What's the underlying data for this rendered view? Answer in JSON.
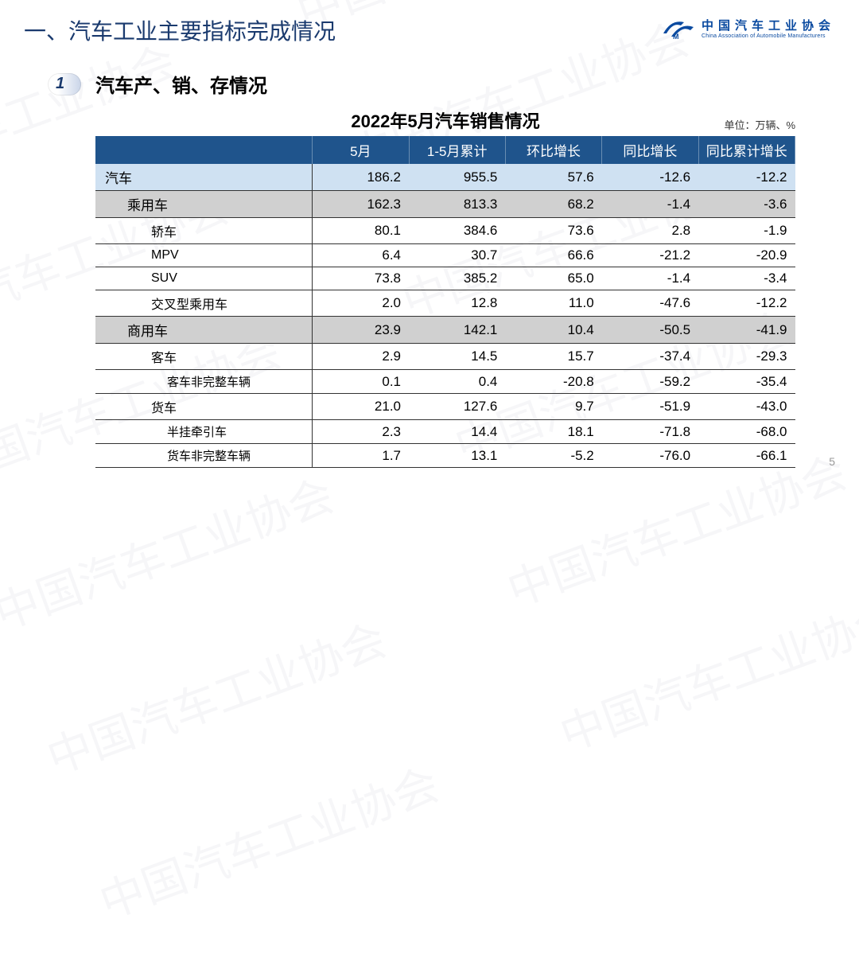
{
  "watermark_text": "中国汽车工业协会",
  "header": {
    "main_title": "一、汽车工业主要指标完成情况",
    "logo_cn": "中国汽车工业协会",
    "logo_en": "China Association of Automobile Manufacturers"
  },
  "section": {
    "number": "1",
    "title": "汽车产、销、存情况"
  },
  "table": {
    "title": "2022年5月汽车销售情况",
    "unit": "单位：万辆、%",
    "columns": [
      "",
      "5月",
      "1-5月累计",
      "环比增长",
      "同比增长",
      "同比累计增长"
    ],
    "rows": [
      {
        "label": "汽车",
        "indent": 0,
        "highlight": "blue",
        "values": [
          "186.2",
          "955.5",
          "57.6",
          "-12.6",
          "-12.2"
        ]
      },
      {
        "label": "乘用车",
        "indent": 1,
        "highlight": "gray",
        "values": [
          "162.3",
          "813.3",
          "68.2",
          "-1.4",
          "-3.6"
        ]
      },
      {
        "label": "轿车",
        "indent": 2,
        "highlight": "",
        "values": [
          "80.1",
          "384.6",
          "73.6",
          "2.8",
          "-1.9"
        ]
      },
      {
        "label": "MPV",
        "indent": 2,
        "highlight": "",
        "values": [
          "6.4",
          "30.7",
          "66.6",
          "-21.2",
          "-20.9"
        ]
      },
      {
        "label": "SUV",
        "indent": 2,
        "highlight": "",
        "values": [
          "73.8",
          "385.2",
          "65.0",
          "-1.4",
          "-3.4"
        ]
      },
      {
        "label": "交叉型乘用车",
        "indent": 2,
        "highlight": "",
        "values": [
          "2.0",
          "12.8",
          "11.0",
          "-47.6",
          "-12.2"
        ]
      },
      {
        "label": "商用车",
        "indent": 1,
        "highlight": "gray",
        "values": [
          "23.9",
          "142.1",
          "10.4",
          "-50.5",
          "-41.9"
        ]
      },
      {
        "label": "客车",
        "indent": 2,
        "highlight": "",
        "values": [
          "2.9",
          "14.5",
          "15.7",
          "-37.4",
          "-29.3"
        ]
      },
      {
        "label": "客车非完整车辆",
        "indent": 3,
        "highlight": "",
        "values": [
          "0.1",
          "0.4",
          "-20.8",
          "-59.2",
          "-35.4"
        ]
      },
      {
        "label": "货车",
        "indent": 2,
        "highlight": "",
        "values": [
          "21.0",
          "127.6",
          "9.7",
          "-51.9",
          "-43.0"
        ]
      },
      {
        "label": "半挂牵引车",
        "indent": 3,
        "highlight": "",
        "values": [
          "2.3",
          "14.4",
          "18.1",
          "-71.8",
          "-68.0"
        ]
      },
      {
        "label": "货车非完整车辆",
        "indent": 3,
        "highlight": "",
        "values": [
          "1.7",
          "13.1",
          "-5.2",
          "-76.0",
          "-66.1"
        ]
      }
    ]
  },
  "page_number": "5",
  "colors": {
    "header_bg": "#1f548c",
    "row_blue": "#cfe1f2",
    "row_gray": "#d0d0d0",
    "title_color": "#1a3a6e",
    "logo_color": "#0a4aa0"
  }
}
